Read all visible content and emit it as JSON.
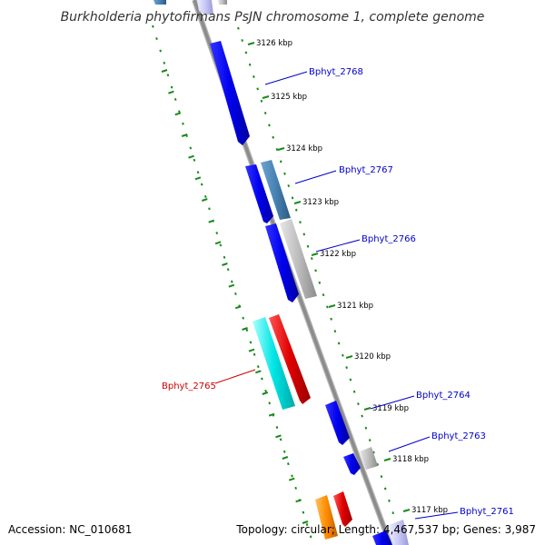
{
  "title": "Burkholderia phytofirmans PsJN chromosome 1, complete genome",
  "footer": {
    "accession": "Accession: NC_010681",
    "summary": "Topology: circular; Length: 4,467,537 bp; Genes: 3,987"
  },
  "colors": {
    "backbone": "#8c8c8c",
    "tick": "#1a8a1a",
    "guide": "#1a8a1a",
    "label_blue": "#0000cc",
    "label_red": "#cc0000",
    "gene_blue": "#0000ee",
    "gene_steel": "#4682b4",
    "gene_grey": "#bdbdbd",
    "gene_cyan": "#00e5e5",
    "gene_red": "#e00000",
    "gene_orange": "#ff8c00",
    "gene_lavender": "#c8c8f5"
  },
  "kbp_marks": [
    {
      "label": "3126 kbp"
    },
    {
      "label": "3125 kbp"
    },
    {
      "label": "3124 kbp"
    },
    {
      "label": "3123 kbp"
    },
    {
      "label": "3122 kbp"
    },
    {
      "label": "3121 kbp"
    },
    {
      "label": "3120 kbp"
    },
    {
      "label": "3119 kbp"
    },
    {
      "label": "3118 kbp"
    },
    {
      "label": "3117 kbp"
    }
  ],
  "gene_labels": [
    {
      "name": "Bphyt_2768"
    },
    {
      "name": "Bphyt_2767"
    },
    {
      "name": "Bphyt_2766"
    },
    {
      "name": "Bphyt_2765"
    },
    {
      "name": "Bphyt_2764"
    },
    {
      "name": "Bphyt_2763"
    },
    {
      "name": "Bphyt_2761"
    }
  ]
}
